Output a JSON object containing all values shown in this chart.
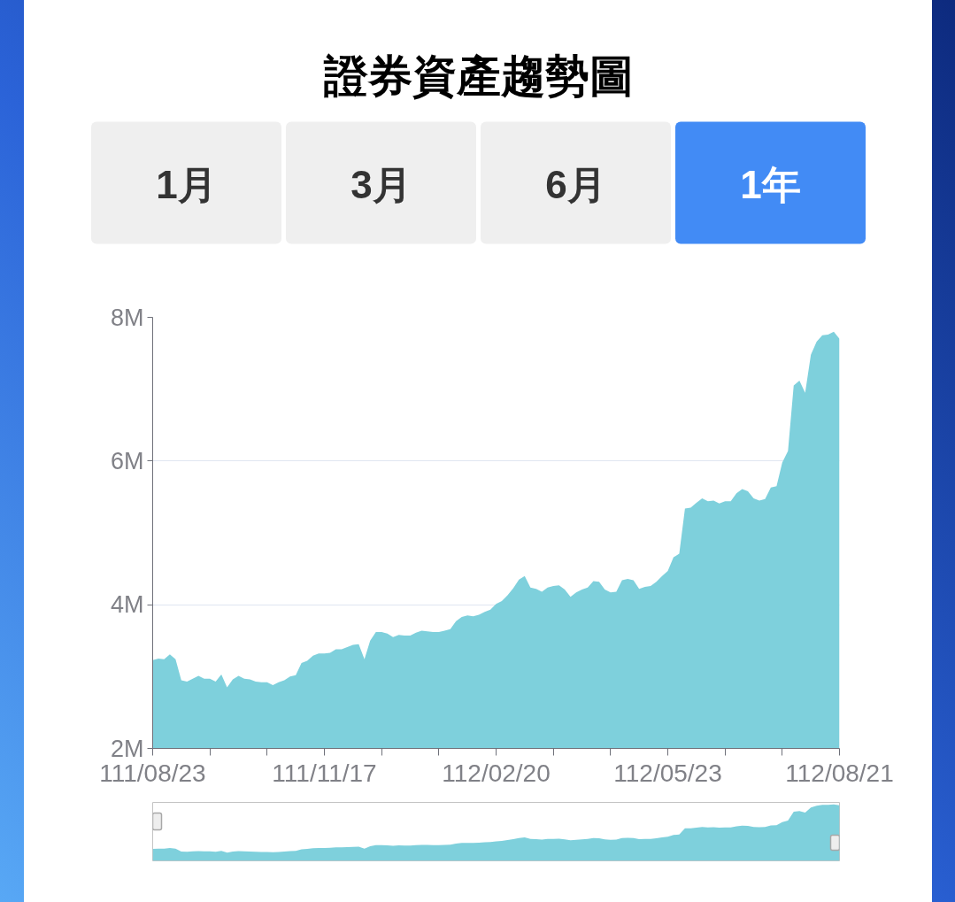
{
  "chart_data": {
    "type": "area",
    "title": "證券資產趨勢圖",
    "annotations": [
      "1月",
      "3月",
      "6月",
      "1年"
    ],
    "categories": [
      "111/08/23",
      null,
      null,
      null,
      null,
      null,
      null,
      null,
      null,
      null,
      null,
      null,
      null,
      null,
      null,
      null,
      null,
      null,
      null,
      null,
      null,
      null,
      null,
      null,
      null,
      null,
      null,
      null,
      null,
      null,
      "111/11/17",
      null,
      null,
      null,
      null,
      null,
      null,
      null,
      null,
      null,
      null,
      null,
      null,
      null,
      null,
      null,
      null,
      null,
      null,
      null,
      null,
      null,
      null,
      null,
      null,
      null,
      null,
      null,
      null,
      null,
      "112/02/20",
      null,
      null,
      null,
      null,
      null,
      null,
      null,
      null,
      null,
      null,
      null,
      null,
      null,
      null,
      null,
      null,
      null,
      null,
      null,
      null,
      null,
      null,
      null,
      null,
      null,
      null,
      null,
      null,
      null,
      "112/05/23",
      null,
      null,
      null,
      null,
      null,
      null,
      null,
      null,
      null,
      null,
      null,
      null,
      null,
      null,
      null,
      null,
      null,
      null,
      null,
      null,
      null,
      null,
      null,
      null,
      null,
      null,
      null,
      null,
      null,
      "112/08/21"
    ],
    "values": [
      3230000,
      3250000,
      3240000,
      3310000,
      3240000,
      2950000,
      2930000,
      2970000,
      3010000,
      2970000,
      2970000,
      2930000,
      3030000,
      2850000,
      2960000,
      3010000,
      2970000,
      2960000,
      2930000,
      2920000,
      2920000,
      2880000,
      2920000,
      2950000,
      3000000,
      3020000,
      3190000,
      3220000,
      3290000,
      3320000,
      3320000,
      3330000,
      3380000,
      3380000,
      3410000,
      3440000,
      3450000,
      3240000,
      3500000,
      3620000,
      3620000,
      3600000,
      3550000,
      3580000,
      3570000,
      3570000,
      3610000,
      3640000,
      3630000,
      3620000,
      3620000,
      3640000,
      3660000,
      3770000,
      3830000,
      3850000,
      3840000,
      3860000,
      3900000,
      3930000,
      4010000,
      4050000,
      4130000,
      4230000,
      4350000,
      4400000,
      4240000,
      4220000,
      4180000,
      4240000,
      4260000,
      4270000,
      4210000,
      4110000,
      4170000,
      4210000,
      4240000,
      4330000,
      4320000,
      4210000,
      4170000,
      4180000,
      4340000,
      4360000,
      4340000,
      4220000,
      4250000,
      4260000,
      4320000,
      4400000,
      4470000,
      4660000,
      4710000,
      5340000,
      5350000,
      5420000,
      5480000,
      5440000,
      5450000,
      5410000,
      5440000,
      5440000,
      5550000,
      5610000,
      5580000,
      5480000,
      5450000,
      5470000,
      5630000,
      5650000,
      5980000,
      6140000,
      7050000,
      7120000,
      6950000,
      7480000,
      7660000,
      7750000,
      7760000,
      7800000,
      7700000
    ],
    "color": "#7ed0dc",
    "ylim": [
      2000000,
      8000000
    ],
    "yticks": [
      {
        "value": 2000000,
        "label": "2M"
      },
      {
        "value": 4000000,
        "label": "4M"
      },
      {
        "value": 6000000,
        "label": "6M"
      },
      {
        "value": 8000000,
        "label": "8M"
      }
    ],
    "grid": "y"
  }
}
